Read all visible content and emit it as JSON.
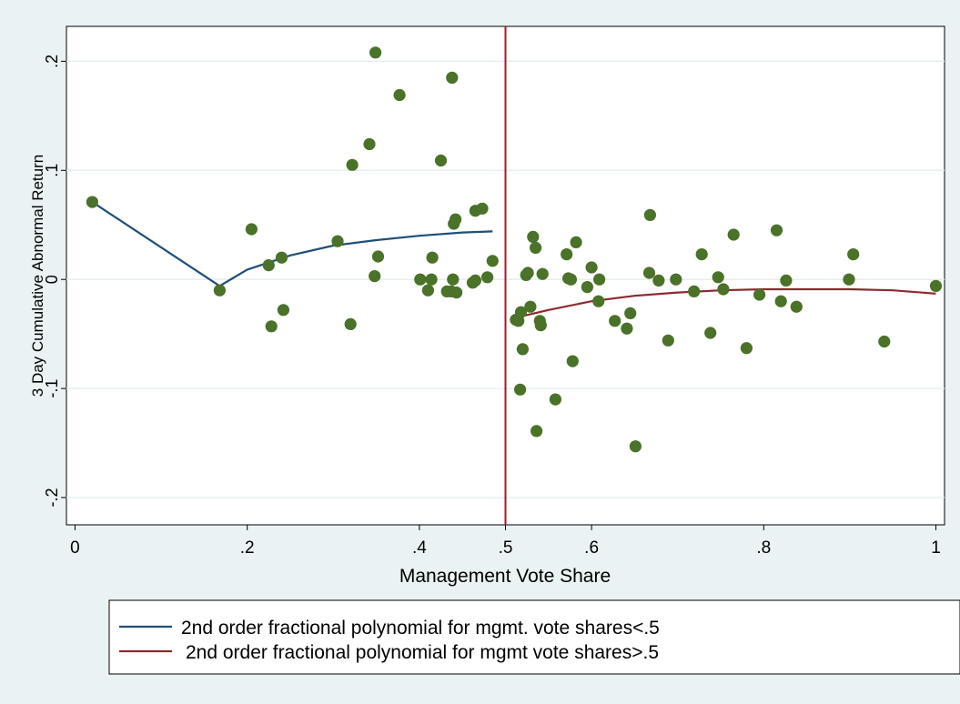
{
  "chart_data": {
    "type": "scatter",
    "title": "",
    "xlabel": "Management Vote Share",
    "ylabel": "3 Day Cumulative Abnormal Return",
    "xlim": [
      -0.01,
      1.01
    ],
    "ylim": [
      -0.225,
      0.232
    ],
    "x_ticks": [
      0,
      0.2,
      0.4,
      0.5,
      0.6,
      0.8,
      1
    ],
    "x_tick_labels": [
      "0",
      ".2",
      ".4",
      ".5",
      ".6",
      ".8",
      "1"
    ],
    "y_ticks": [
      -0.2,
      -0.1,
      0,
      0.1,
      0.2
    ],
    "y_tick_labels": [
      "-.2",
      "-.1",
      "0",
      ".1",
      ".2"
    ],
    "grid": "horizontal",
    "vertical_line": {
      "x": 0.5,
      "color": "#a0192b"
    },
    "legend_position": "bottom",
    "colors": {
      "points": "#4a7228",
      "below_line": "#1f4e79",
      "above_line": "#8b2a2e",
      "background": "#eaf2f3",
      "plot_background": "#ffffff"
    },
    "series": [
      {
        "type": "scatter",
        "points": [
          [
            0.02,
            0.071
          ],
          [
            0.168,
            -0.01
          ],
          [
            0.205,
            0.046
          ],
          [
            0.225,
            0.013
          ],
          [
            0.228,
            -0.043
          ],
          [
            0.24,
            0.02
          ],
          [
            0.242,
            -0.028
          ],
          [
            0.305,
            0.035
          ],
          [
            0.32,
            -0.041
          ],
          [
            0.322,
            0.105
          ],
          [
            0.342,
            0.124
          ],
          [
            0.348,
            0.003
          ],
          [
            0.349,
            0.208
          ],
          [
            0.352,
            0.021
          ],
          [
            0.377,
            0.169
          ],
          [
            0.401,
            0.0
          ],
          [
            0.41,
            -0.01
          ],
          [
            0.414,
            0.0
          ],
          [
            0.415,
            0.02
          ],
          [
            0.425,
            0.109
          ],
          [
            0.432,
            -0.011
          ],
          [
            0.437,
            -0.011
          ],
          [
            0.438,
            0.185
          ],
          [
            0.439,
            0.0
          ],
          [
            0.44,
            0.051
          ],
          [
            0.442,
            0.055
          ],
          [
            0.443,
            -0.012
          ],
          [
            0.462,
            -0.003
          ],
          [
            0.465,
            -0.001
          ],
          [
            0.465,
            0.063
          ],
          [
            0.473,
            0.065
          ],
          [
            0.479,
            0.002
          ],
          [
            0.485,
            0.017
          ],
          [
            0.512,
            -0.037
          ],
          [
            0.515,
            -0.038
          ],
          [
            0.517,
            -0.101
          ],
          [
            0.518,
            -0.03
          ],
          [
            0.52,
            -0.064
          ],
          [
            0.524,
            0.004
          ],
          [
            0.526,
            0.006
          ],
          [
            0.529,
            -0.025
          ],
          [
            0.532,
            0.039
          ],
          [
            0.535,
            0.029
          ],
          [
            0.536,
            -0.139
          ],
          [
            0.54,
            -0.038
          ],
          [
            0.541,
            -0.042
          ],
          [
            0.543,
            0.005
          ],
          [
            0.558,
            -0.11
          ],
          [
            0.571,
            0.023
          ],
          [
            0.573,
            0.001
          ],
          [
            0.576,
            0.0
          ],
          [
            0.578,
            -0.075
          ],
          [
            0.582,
            0.034
          ],
          [
            0.595,
            -0.007
          ],
          [
            0.6,
            0.011
          ],
          [
            0.608,
            -0.02
          ],
          [
            0.609,
            0.0
          ],
          [
            0.627,
            -0.038
          ],
          [
            0.641,
            -0.045
          ],
          [
            0.645,
            -0.031
          ],
          [
            0.651,
            -0.153
          ],
          [
            0.667,
            0.006
          ],
          [
            0.668,
            0.059
          ],
          [
            0.678,
            -0.001
          ],
          [
            0.689,
            -0.056
          ],
          [
            0.698,
            0.0
          ],
          [
            0.719,
            -0.011
          ],
          [
            0.728,
            0.023
          ],
          [
            0.738,
            -0.049
          ],
          [
            0.747,
            0.002
          ],
          [
            0.753,
            -0.009
          ],
          [
            0.765,
            0.041
          ],
          [
            0.78,
            -0.063
          ],
          [
            0.795,
            -0.014
          ],
          [
            0.815,
            0.045
          ],
          [
            0.82,
            -0.02
          ],
          [
            0.826,
            -0.001
          ],
          [
            0.838,
            -0.025
          ],
          [
            0.899,
            0.0
          ],
          [
            0.904,
            0.023
          ],
          [
            0.94,
            -0.057
          ],
          [
            1.0,
            -0.006
          ]
        ]
      },
      {
        "name": "2nd order fractional polynomial for mgmt. vote shares<.5",
        "type": "line",
        "points": [
          [
            0.02,
            0.071
          ],
          [
            0.168,
            -0.006
          ],
          [
            0.2,
            0.009
          ],
          [
            0.25,
            0.022
          ],
          [
            0.3,
            0.031
          ],
          [
            0.35,
            0.036
          ],
          [
            0.4,
            0.04
          ],
          [
            0.45,
            0.043
          ],
          [
            0.485,
            0.044
          ]
        ]
      },
      {
        "name": "2nd order fractional polynomial for mgmt vote shares>.5",
        "type": "line",
        "points": [
          [
            0.512,
            -0.035
          ],
          [
            0.55,
            -0.028
          ],
          [
            0.6,
            -0.02
          ],
          [
            0.65,
            -0.015
          ],
          [
            0.7,
            -0.012
          ],
          [
            0.75,
            -0.01
          ],
          [
            0.8,
            -0.009
          ],
          [
            0.85,
            -0.009
          ],
          [
            0.9,
            -0.009
          ],
          [
            0.95,
            -0.01
          ],
          [
            1.0,
            -0.013
          ]
        ]
      }
    ]
  }
}
